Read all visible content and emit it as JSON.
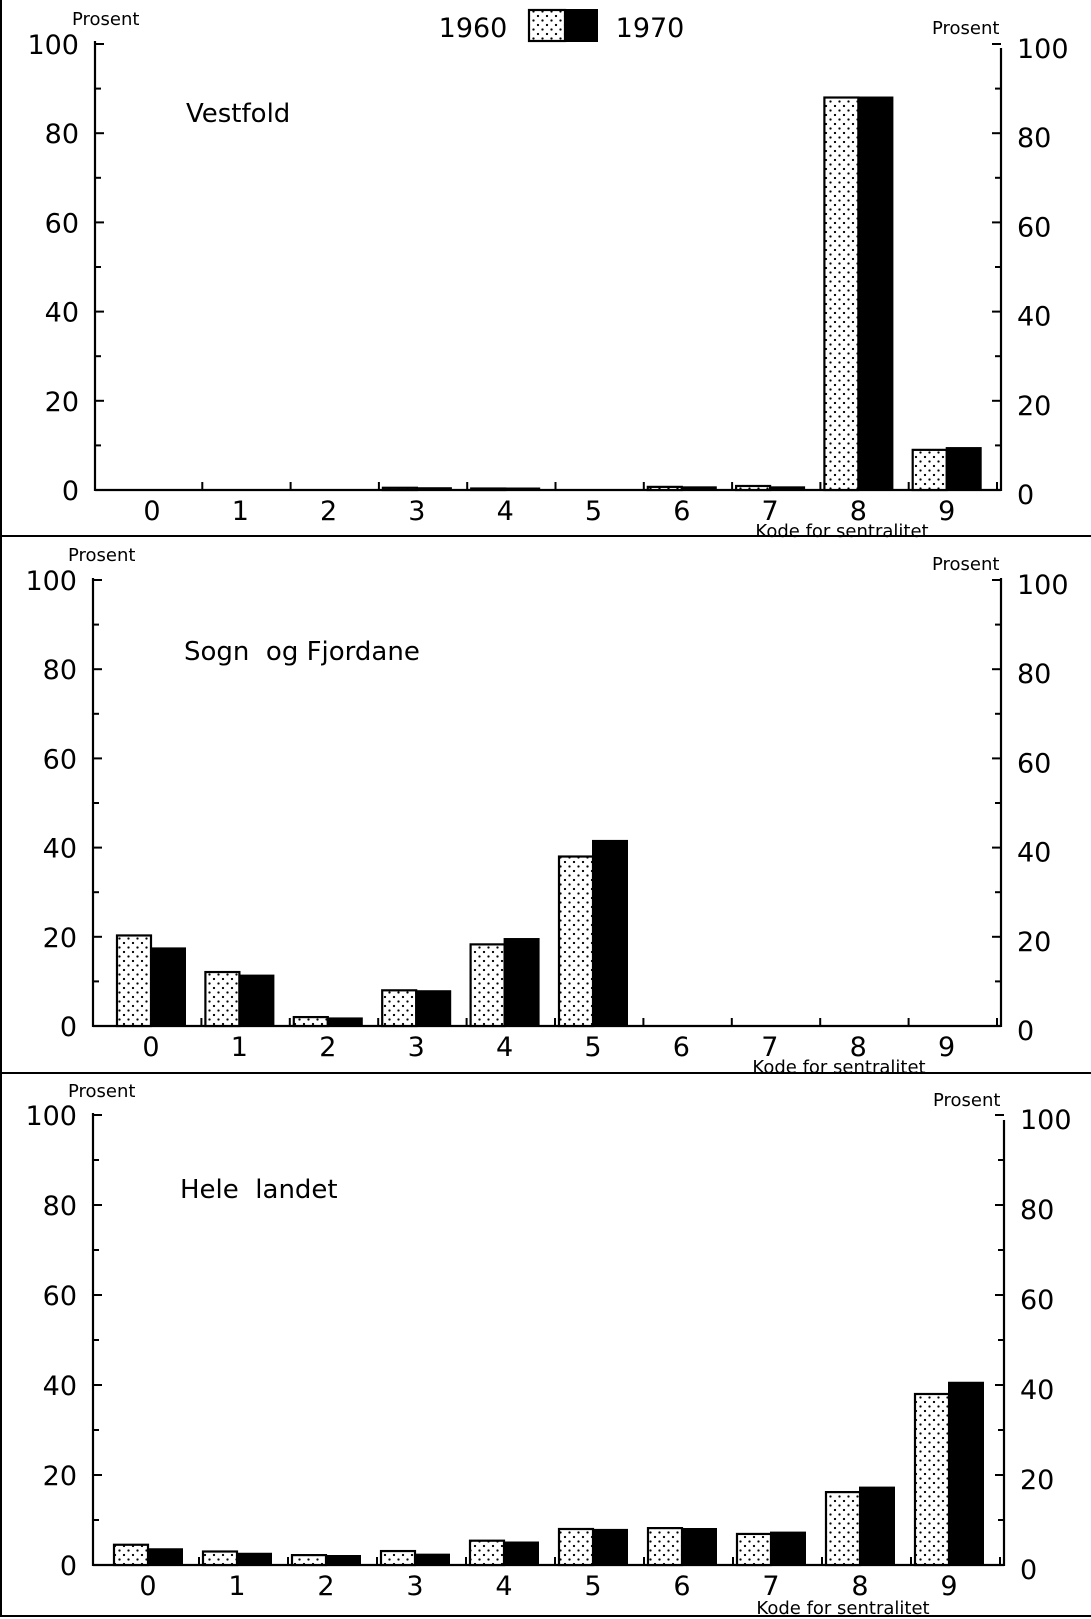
{
  "legend": {
    "series_1960": "1960",
    "series_1970": "1970"
  },
  "colors": {
    "bar_1970": "#000000",
    "bar_1960_dots": "#000000",
    "background": "#ffffff"
  },
  "chart_data": [
    {
      "type": "bar",
      "title": "Vestfold",
      "xlabel": "Kode for sentralitet",
      "ylabel_left": "Prosent",
      "ylabel_right": "Prosent",
      "ylim": [
        0,
        100
      ],
      "y_ticks": [
        "0",
        "20",
        "40",
        "60",
        "80",
        "100"
      ],
      "categories": [
        "0",
        "1",
        "2",
        "3",
        "4",
        "5",
        "6",
        "7",
        "8",
        "9"
      ],
      "series": [
        {
          "name": "1960",
          "values": [
            0,
            0,
            0,
            0.5,
            0.2,
            0,
            0.7,
            0.9,
            88,
            9
          ]
        },
        {
          "name": "1970",
          "values": [
            0,
            0,
            0,
            0.4,
            0.2,
            0,
            0.6,
            0.6,
            88,
            9.4
          ]
        }
      ]
    },
    {
      "type": "bar",
      "title": "Sogn  og Fjordane",
      "xlabel": "Kode for sentralitet",
      "ylabel_left": "Prosent",
      "ylabel_right": "Prosent",
      "ylim": [
        0,
        100
      ],
      "y_ticks": [
        "0",
        "20",
        "40",
        "60",
        "80",
        "100"
      ],
      "categories": [
        "0",
        "1",
        "2",
        "3",
        "4",
        "5",
        "6",
        "7",
        "8",
        "9"
      ],
      "series": [
        {
          "name": "1960",
          "values": [
            20.3,
            12.1,
            2,
            8,
            18.3,
            38,
            0,
            0,
            0,
            0
          ]
        },
        {
          "name": "1970",
          "values": [
            17.4,
            11.3,
            1.7,
            7.8,
            19.5,
            41.5,
            0,
            0,
            0,
            0
          ]
        }
      ]
    },
    {
      "type": "bar",
      "title": "Hele  landet",
      "xlabel": "Kode for sentralitet",
      "ylabel_left": "Prosent",
      "ylabel_right": "Prosent",
      "ylim": [
        0,
        100
      ],
      "y_ticks": [
        "0",
        "20",
        "40",
        "60",
        "80",
        "100"
      ],
      "categories": [
        "0",
        "1",
        "2",
        "3",
        "4",
        "5",
        "6",
        "7",
        "8",
        "9"
      ],
      "series": [
        {
          "name": "1960",
          "values": [
            4.5,
            3,
            2.2,
            3.1,
            5.4,
            8,
            8.2,
            6.9,
            16.2,
            38
          ]
        },
        {
          "name": "1970",
          "values": [
            3.5,
            2.5,
            2,
            2.3,
            5,
            7.8,
            8,
            7.2,
            17.2,
            40.5
          ]
        }
      ]
    }
  ]
}
